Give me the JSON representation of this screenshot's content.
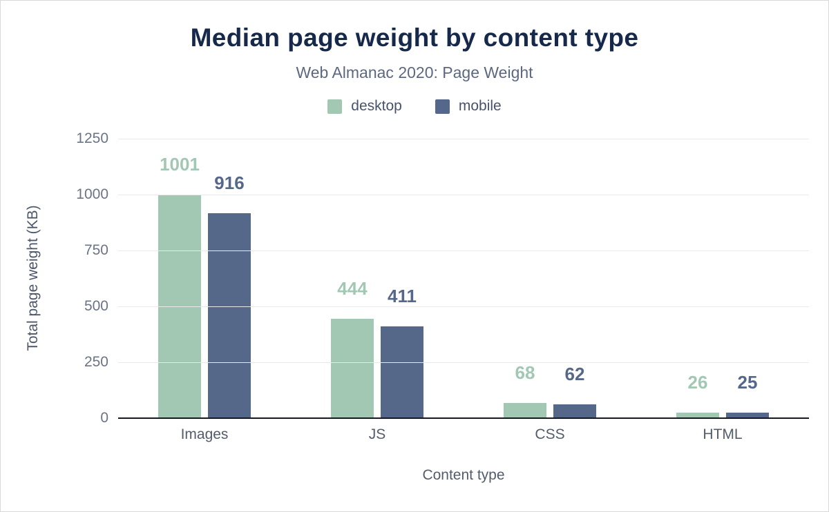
{
  "chart_data": {
    "type": "bar",
    "title": "Median page weight by content type",
    "subtitle": "Web Almanac 2020: Page Weight",
    "xlabel": "Content type",
    "ylabel": "Total page weight (KB)",
    "categories": [
      "Images",
      "JS",
      "CSS",
      "HTML"
    ],
    "series": [
      {
        "name": "desktop",
        "color": "#a2c8b3",
        "values": [
          1001,
          444,
          68,
          26
        ]
      },
      {
        "name": "mobile",
        "color": "#56688a",
        "values": [
          916,
          411,
          62,
          25
        ]
      }
    ],
    "ylim": [
      0,
      1250
    ],
    "yticks": [
      0,
      250,
      500,
      750,
      1000,
      1250
    ],
    "grid": true,
    "legend_position": "top",
    "colors": {
      "title": "#16294b",
      "subtitle": "#5c6880",
      "axis_line": "#16181d",
      "gridline": "#e9e9e9",
      "tick_label": "#6b7484"
    }
  }
}
